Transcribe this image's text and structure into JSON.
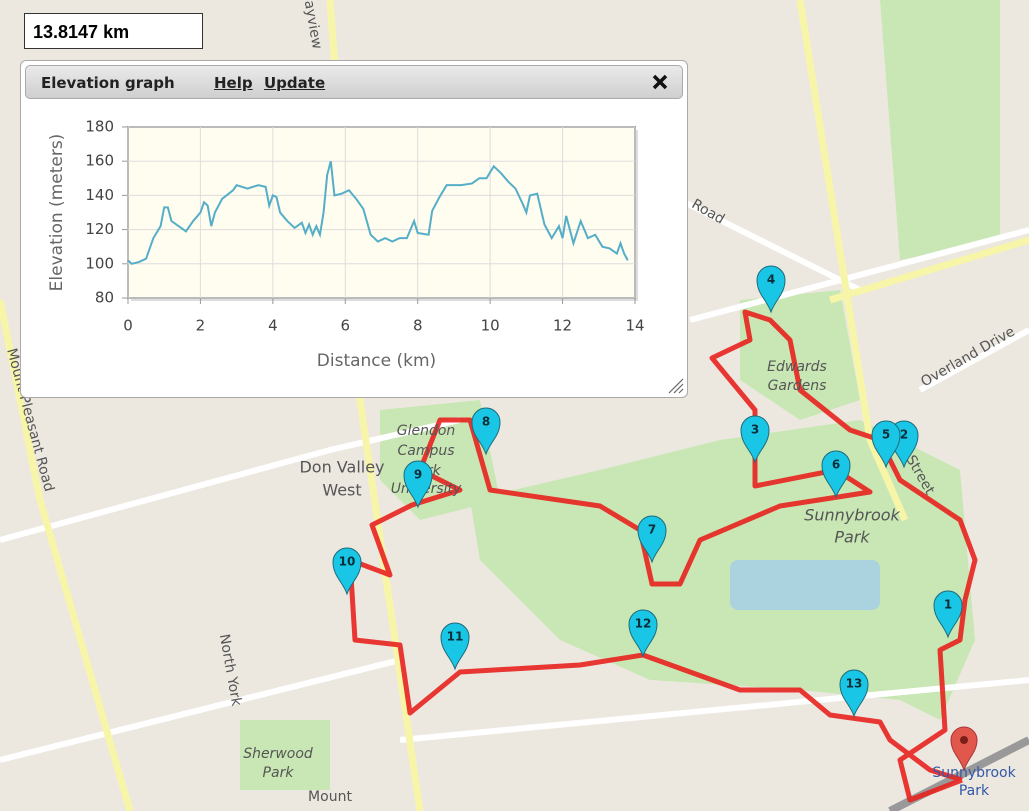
{
  "distance_box": {
    "text": "13.8147 km"
  },
  "panel": {
    "title": "Elevation graph",
    "links": [
      "Help",
      "Update"
    ]
  },
  "chart_data": {
    "type": "line",
    "x_label": "Distance (km)",
    "y_label": "Elevation (meters)",
    "x": [
      0,
      0.1,
      0.3,
      0.5,
      0.7,
      0.9,
      1.0,
      1.1,
      1.2,
      1.4,
      1.6,
      1.8,
      2.0,
      2.1,
      2.2,
      2.3,
      2.4,
      2.6,
      2.9,
      3.0,
      3.3,
      3.6,
      3.8,
      3.9,
      4.0,
      4.1,
      4.2,
      4.4,
      4.6,
      4.8,
      4.9,
      5.0,
      5.1,
      5.2,
      5.3,
      5.4,
      5.5,
      5.6,
      5.7,
      5.9,
      6.1,
      6.3,
      6.5,
      6.7,
      6.9,
      7.1,
      7.3,
      7.5,
      7.7,
      7.9,
      8.0,
      8.3,
      8.4,
      8.6,
      8.8,
      9.2,
      9.5,
      9.7,
      9.9,
      10.1,
      10.3,
      10.5,
      10.7,
      10.9,
      11.0,
      11.1,
      11.3,
      11.5,
      11.7,
      11.9,
      12.0,
      12.1,
      12.3,
      12.5,
      12.7,
      12.9,
      13.1,
      13.3,
      13.5,
      13.6,
      13.7,
      13.8
    ],
    "values": [
      102,
      100,
      101,
      103,
      115,
      122,
      133,
      133,
      125,
      122,
      119,
      125,
      130,
      136,
      134,
      122,
      130,
      138,
      143,
      146,
      144,
      146,
      145,
      134,
      140,
      139,
      130,
      125,
      121,
      124,
      118,
      123,
      117,
      122,
      117,
      130,
      152,
      160,
      140,
      141,
      143,
      138,
      132,
      117,
      113,
      115,
      113,
      115,
      115,
      125,
      118,
      117,
      131,
      139,
      146,
      146,
      147,
      150,
      150,
      157,
      153,
      148,
      144,
      135,
      130,
      140,
      141,
      123,
      115,
      122,
      115,
      128,
      112,
      125,
      115,
      117,
      110,
      109,
      106,
      112,
      106,
      102
    ],
    "color": "#55aec8",
    "xlim": [
      0,
      14
    ],
    "ylim": [
      80,
      180
    ],
    "xticks": [
      0,
      2,
      4,
      6,
      8,
      10,
      12,
      14
    ],
    "yticks": [
      80,
      100,
      120,
      140,
      160,
      180
    ],
    "grid": true
  },
  "map_labels": [
    "Bayview",
    "Road",
    "Edwards",
    "Gardens",
    "Overland Drive",
    "Street",
    "Sunnybrook",
    "Park",
    "Glendon",
    "Campus",
    "York",
    "University",
    "Don Valley",
    "West",
    "Mount Pleasant Road",
    "North York",
    "Sherwood",
    "Park",
    "Mount",
    "Sunnybrook",
    "Park"
  ],
  "map_markers": [
    "1",
    "2",
    "3",
    "4",
    "5",
    "6",
    "7",
    "8",
    "9",
    "10",
    "11",
    "12",
    "13"
  ]
}
